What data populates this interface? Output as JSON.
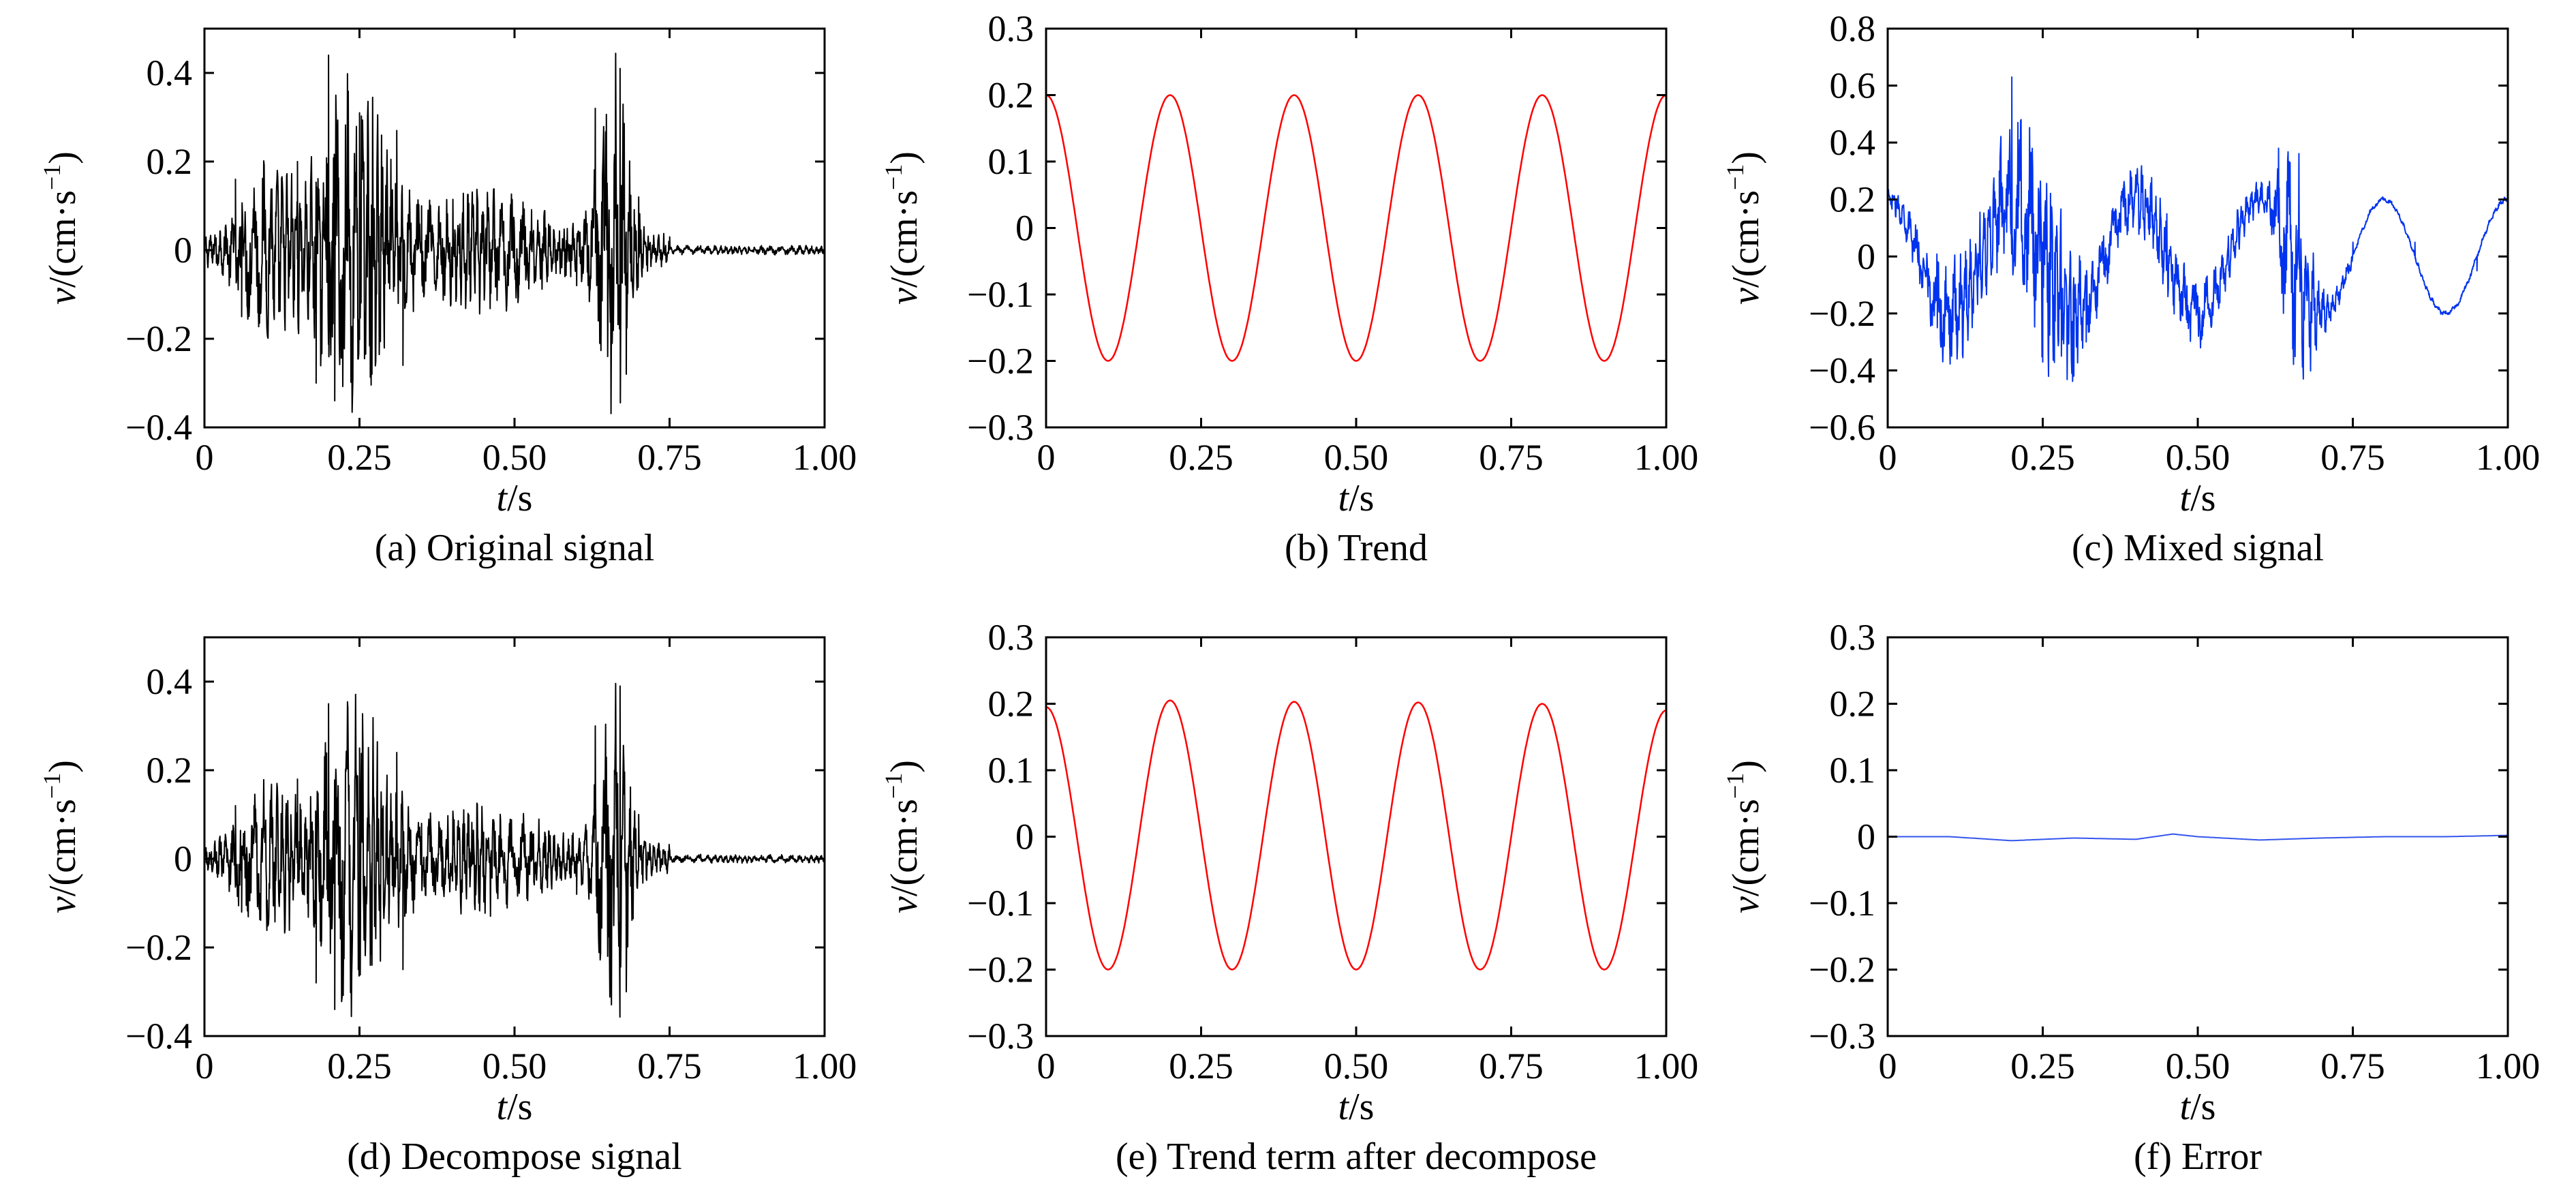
{
  "figure": {
    "xlabel_var": "t",
    "xlabel_unit": "/s",
    "ylabel_var": "v",
    "ylabel_unit": "/(cm·s",
    "ylabel_exp": "−1",
    "ylabel_close": ")"
  },
  "chart_data": [
    {
      "id": "a",
      "type": "line",
      "caption": "(a) Original signal",
      "xlabel": "t/s",
      "ylabel": "v/(cm·s−1)",
      "xlim": [
        0,
        1.0
      ],
      "ylim": [
        -0.4,
        0.5
      ],
      "xticks": [
        "0",
        "0.25",
        "0.50",
        "0.75",
        "1.00"
      ],
      "xtick_values": [
        0,
        0.25,
        0.5,
        0.75,
        1.0
      ],
      "yticks": [
        "−0.4",
        "−0.2",
        "0",
        "0.2",
        "0.4"
      ],
      "ytick_values": [
        -0.4,
        -0.2,
        0,
        0.2,
        0.4
      ],
      "grid": false,
      "color": "#000000",
      "series": [
        {
          "x": [
            0,
            0.05,
            0.06,
            0.08,
            0.1,
            0.15,
            0.18,
            0.2,
            0.21,
            0.25,
            0.27,
            0.31,
            0.32,
            0.35,
            0.4,
            0.45,
            0.5,
            0.55,
            0.6,
            0.63,
            0.65,
            0.67,
            0.68,
            0.7,
            0.75,
            0.8,
            0.9,
            1.0
          ],
          "y": [
            0.01,
            0.16,
            -0.15,
            0.14,
            -0.12,
            0.2,
            -0.3,
            0.44,
            -0.34,
            0.31,
            -0.28,
            0.27,
            -0.26,
            0.1,
            -0.06,
            0.08,
            -0.05,
            0.05,
            -0.08,
            0.32,
            -0.24,
            0.41,
            -0.28,
            0.12,
            0.03,
            0.01,
            -0.005,
            -0.01
          ]
        }
      ]
    },
    {
      "id": "b",
      "type": "line",
      "caption": "(b) Trend",
      "xlabel": "t/s",
      "ylabel": "v/(cm·s−1)",
      "xlim": [
        0,
        1.0
      ],
      "ylim": [
        -0.3,
        0.3
      ],
      "xticks": [
        "0",
        "0.25",
        "0.50",
        "0.75",
        "1.00"
      ],
      "xtick_values": [
        0,
        0.25,
        0.5,
        0.75,
        1.0
      ],
      "yticks": [
        "−0.3",
        "−0.2",
        "−0.1",
        "0",
        "0.1",
        "0.2",
        "0.3"
      ],
      "ytick_values": [
        -0.3,
        -0.2,
        -0.1,
        0,
        0.1,
        0.2,
        0.3
      ],
      "grid": false,
      "color": "#ff0000",
      "series": [
        {
          "x": [
            0,
            0.1,
            0.2,
            0.3,
            0.4,
            0.5,
            0.6,
            0.7,
            0.8,
            0.9,
            1.0
          ],
          "y": [
            0.2,
            -0.2,
            0.2,
            -0.2,
            0.2,
            -0.2,
            0.2,
            -0.2,
            0.2,
            -0.2,
            0.2
          ]
        }
      ]
    },
    {
      "id": "c",
      "type": "line",
      "caption": "(c) Mixed signal",
      "xlabel": "t/s",
      "ylabel": "v/(cm·s−1)",
      "xlim": [
        0,
        1.0
      ],
      "ylim": [
        -0.6,
        0.8
      ],
      "xticks": [
        "0",
        "0.25",
        "0.50",
        "0.75",
        "1.00"
      ],
      "xtick_values": [
        0,
        0.25,
        0.5,
        0.75,
        1.0
      ],
      "yticks": [
        "−0.6",
        "−0.4",
        "−0.2",
        "0",
        "0.2",
        "0.4",
        "0.6",
        "0.8"
      ],
      "ytick_values": [
        -0.6,
        -0.4,
        -0.2,
        0,
        0.2,
        0.4,
        0.6,
        0.8
      ],
      "grid": false,
      "color": "#0033ee",
      "series": [
        {
          "x": [
            0,
            0.05,
            0.08,
            0.1,
            0.15,
            0.18,
            0.2,
            0.21,
            0.25,
            0.28,
            0.3,
            0.32,
            0.35,
            0.4,
            0.45,
            0.5,
            0.55,
            0.6,
            0.63,
            0.65,
            0.67,
            0.7,
            0.75,
            0.8,
            0.85,
            0.9,
            0.95,
            1.0
          ],
          "y": [
            0.2,
            0.05,
            -0.25,
            -0.3,
            -0.05,
            0.3,
            0.63,
            0.1,
            0.05,
            -0.35,
            -0.42,
            -0.3,
            0.0,
            0.27,
            0.15,
            -0.2,
            -0.05,
            0.2,
            0.38,
            0.05,
            -0.43,
            -0.15,
            0.05,
            0.2,
            0.05,
            -0.2,
            -0.05,
            0.2
          ]
        }
      ]
    },
    {
      "id": "d",
      "type": "line",
      "caption": "(d) Decompose signal",
      "xlabel": "t/s",
      "ylabel": "v/(cm·s−1)",
      "xlim": [
        0,
        1.0
      ],
      "ylim": [
        -0.4,
        0.5
      ],
      "xticks": [
        "0",
        "0.25",
        "0.50",
        "0.75",
        "1.00"
      ],
      "xtick_values": [
        0,
        0.25,
        0.5,
        0.75,
        1.0
      ],
      "yticks": [
        "−0.4",
        "−0.2",
        "0",
        "0.2",
        "0.4"
      ],
      "ytick_values": [
        -0.4,
        -0.2,
        0,
        0.2,
        0.4
      ],
      "grid": false,
      "color": "#000000",
      "series": [
        {
          "x": [
            0,
            0.05,
            0.06,
            0.08,
            0.1,
            0.15,
            0.18,
            0.2,
            0.21,
            0.25,
            0.27,
            0.31,
            0.32,
            0.35,
            0.4,
            0.45,
            0.5,
            0.55,
            0.6,
            0.63,
            0.65,
            0.67,
            0.68,
            0.7,
            0.75,
            0.8,
            0.9,
            1.0
          ],
          "y": [
            0.0,
            0.12,
            -0.12,
            0.12,
            -0.1,
            0.18,
            -0.28,
            0.35,
            -0.34,
            0.25,
            -0.24,
            0.24,
            -0.25,
            0.08,
            -0.05,
            0.06,
            -0.04,
            0.05,
            -0.08,
            0.3,
            -0.22,
            0.39,
            -0.3,
            0.1,
            0.02,
            0.01,
            0.0,
            0.0
          ]
        }
      ]
    },
    {
      "id": "e",
      "type": "line",
      "caption": "(e) Trend term after decompose",
      "xlabel": "t/s",
      "ylabel": "v/(cm·s−1)",
      "xlim": [
        0,
        1.0
      ],
      "ylim": [
        -0.3,
        0.3
      ],
      "xticks": [
        "0",
        "0.25",
        "0.50",
        "0.75",
        "1.00"
      ],
      "xtick_values": [
        0,
        0.25,
        0.5,
        0.75,
        1.0
      ],
      "yticks": [
        "−0.3",
        "−0.2",
        "−0.1",
        "0",
        "0.1",
        "0.2",
        "0.3"
      ],
      "ytick_values": [
        -0.3,
        -0.2,
        -0.1,
        0,
        0.1,
        0.2,
        0.3
      ],
      "grid": false,
      "color": "#ff0000",
      "series": [
        {
          "x": [
            0,
            0.1,
            0.2,
            0.3,
            0.4,
            0.5,
            0.6,
            0.7,
            0.8,
            0.9,
            1.0
          ],
          "y": [
            0.195,
            -0.2,
            0.205,
            -0.2,
            0.203,
            -0.2,
            0.202,
            -0.2,
            0.2,
            -0.2,
            0.19
          ]
        }
      ]
    },
    {
      "id": "f",
      "type": "line",
      "caption": "(f) Error",
      "xlabel": "t/s",
      "ylabel": "v/(cm·s−1)",
      "xlim": [
        0,
        1.0
      ],
      "ylim": [
        -0.3,
        0.3
      ],
      "xticks": [
        "0",
        "0.25",
        "0.50",
        "0.75",
        "1.00"
      ],
      "xtick_values": [
        0,
        0.25,
        0.5,
        0.75,
        1.0
      ],
      "yticks": [
        "−0.3",
        "−0.2",
        "−0.1",
        "0",
        "0.1",
        "0.2",
        "0.3"
      ],
      "ytick_values": [
        -0.3,
        -0.2,
        -0.1,
        0,
        0.1,
        0.2,
        0.3
      ],
      "grid": false,
      "color": "#3355ee",
      "series": [
        {
          "x": [
            0,
            0.1,
            0.2,
            0.3,
            0.4,
            0.46,
            0.5,
            0.6,
            0.7,
            0.8,
            0.9,
            1.0
          ],
          "y": [
            0.0,
            0.0,
            -0.006,
            -0.002,
            -0.004,
            0.004,
            0.0,
            -0.005,
            -0.002,
            0.0,
            0.0,
            0.002
          ]
        }
      ]
    }
  ]
}
